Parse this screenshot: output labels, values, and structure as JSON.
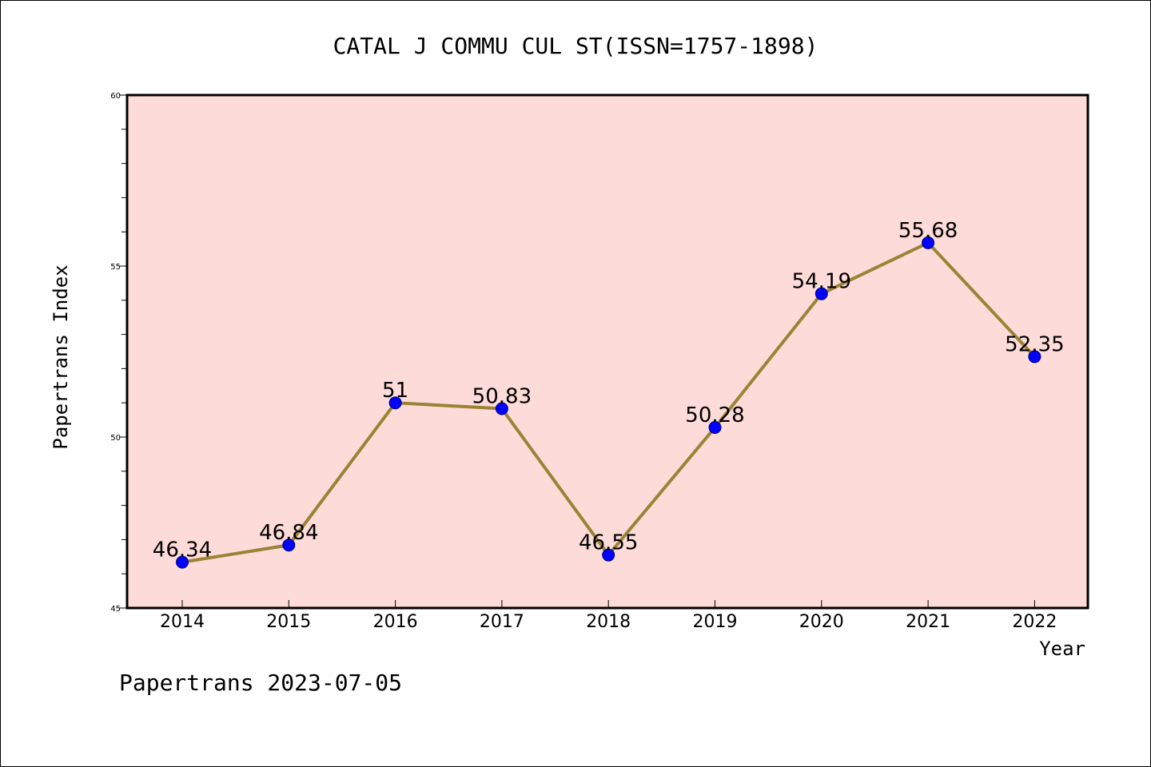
{
  "chart_data": {
    "type": "line",
    "title": "CATAL J COMMU CUL ST(ISSN=1757-1898)",
    "xlabel": "Year",
    "ylabel": "Papertrans Index",
    "categories": [
      "2014",
      "2015",
      "2016",
      "2017",
      "2018",
      "2019",
      "2020",
      "2021",
      "2022"
    ],
    "series": [
      {
        "values": [
          46.34,
          46.84,
          51,
          50.83,
          46.55,
          50.28,
          54.19,
          55.68,
          52.35
        ],
        "labels": [
          "46.34",
          "46.84",
          "51",
          "50.83",
          "46.55",
          "50.28",
          "54.19",
          "55.68",
          "52.35"
        ]
      }
    ],
    "ylim": [
      45,
      60
    ],
    "yticks": [
      "45",
      "50",
      "55",
      "60"
    ],
    "grid": false,
    "legend": "none",
    "colors": {
      "plot_background": "#fddbd8",
      "line": "#9b8336",
      "marker": "#0000ff"
    }
  },
  "footer": "Papertrans 2023-07-05"
}
